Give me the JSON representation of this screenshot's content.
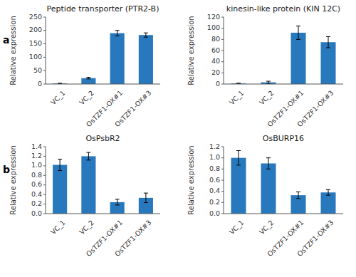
{
  "chart_data": [
    {
      "type": "bar",
      "title": "Peptide transporter (PTR2-B)",
      "y_label": "Relative expression",
      "categories": [
        "VC_1",
        "VC_2",
        "OsTZF1-OX#1",
        "OsTZF1-OX#3"
      ],
      "values": [
        2,
        22,
        190,
        183
      ],
      "errors": [
        1,
        3,
        10,
        8
      ],
      "color": "#2878BE",
      "ylim": [
        0,
        250
      ],
      "yticks": [
        0,
        50,
        100,
        150,
        200,
        250
      ],
      "panel_label": "a"
    },
    {
      "type": "bar",
      "title": "kinesin-like protein (KIN 12C)",
      "y_label": "Relative expression",
      "categories": [
        "VC_1",
        "VC_2",
        "OsTZF1-OX#1",
        "OsTZF1-OX#3"
      ],
      "values": [
        1,
        3,
        92,
        75
      ],
      "errors": [
        0.5,
        2,
        12,
        10
      ],
      "color": "#2878BE",
      "ylim": [
        0,
        120
      ],
      "yticks": [
        0,
        20,
        40,
        60,
        80,
        100,
        120
      ]
    },
    {
      "type": "bar",
      "title": "OsPsbR2",
      "y_label": "Relative expression",
      "categories": [
        "VC_1",
        "VC_2",
        "OsTZF1-OX#1",
        "OsTZF1-OX#3"
      ],
      "values": [
        1.02,
        1.2,
        0.24,
        0.33
      ],
      "errors": [
        0.12,
        0.08,
        0.06,
        0.1
      ],
      "color": "#2878BE",
      "ylim": [
        0,
        1.4
      ],
      "yticks": [
        {
          "value": 0,
          "label": "0.0"
        },
        0.2,
        0.4,
        0.6,
        0.8,
        {
          "value": 1.0,
          "label": "1.0"
        },
        1.2,
        1.4
      ],
      "panel_label": "b"
    },
    {
      "type": "bar",
      "title": "OsBURP16",
      "y_label": "Relative expression",
      "categories": [
        "VC_1",
        "VC_2",
        "OsTZF1-OX#1",
        "OsTZF1-OX#3"
      ],
      "values": [
        1.0,
        0.9,
        0.33,
        0.38
      ],
      "errors": [
        0.13,
        0.1,
        0.06,
        0.05
      ],
      "color": "#2878BE",
      "ylim": [
        0,
        1.2
      ],
      "yticks": [
        {
          "value": 0,
          "label": "0.0"
        },
        0.2,
        0.4,
        0.6,
        0.8,
        {
          "value": 1.0,
          "label": "1.0"
        },
        1.2
      ]
    }
  ]
}
